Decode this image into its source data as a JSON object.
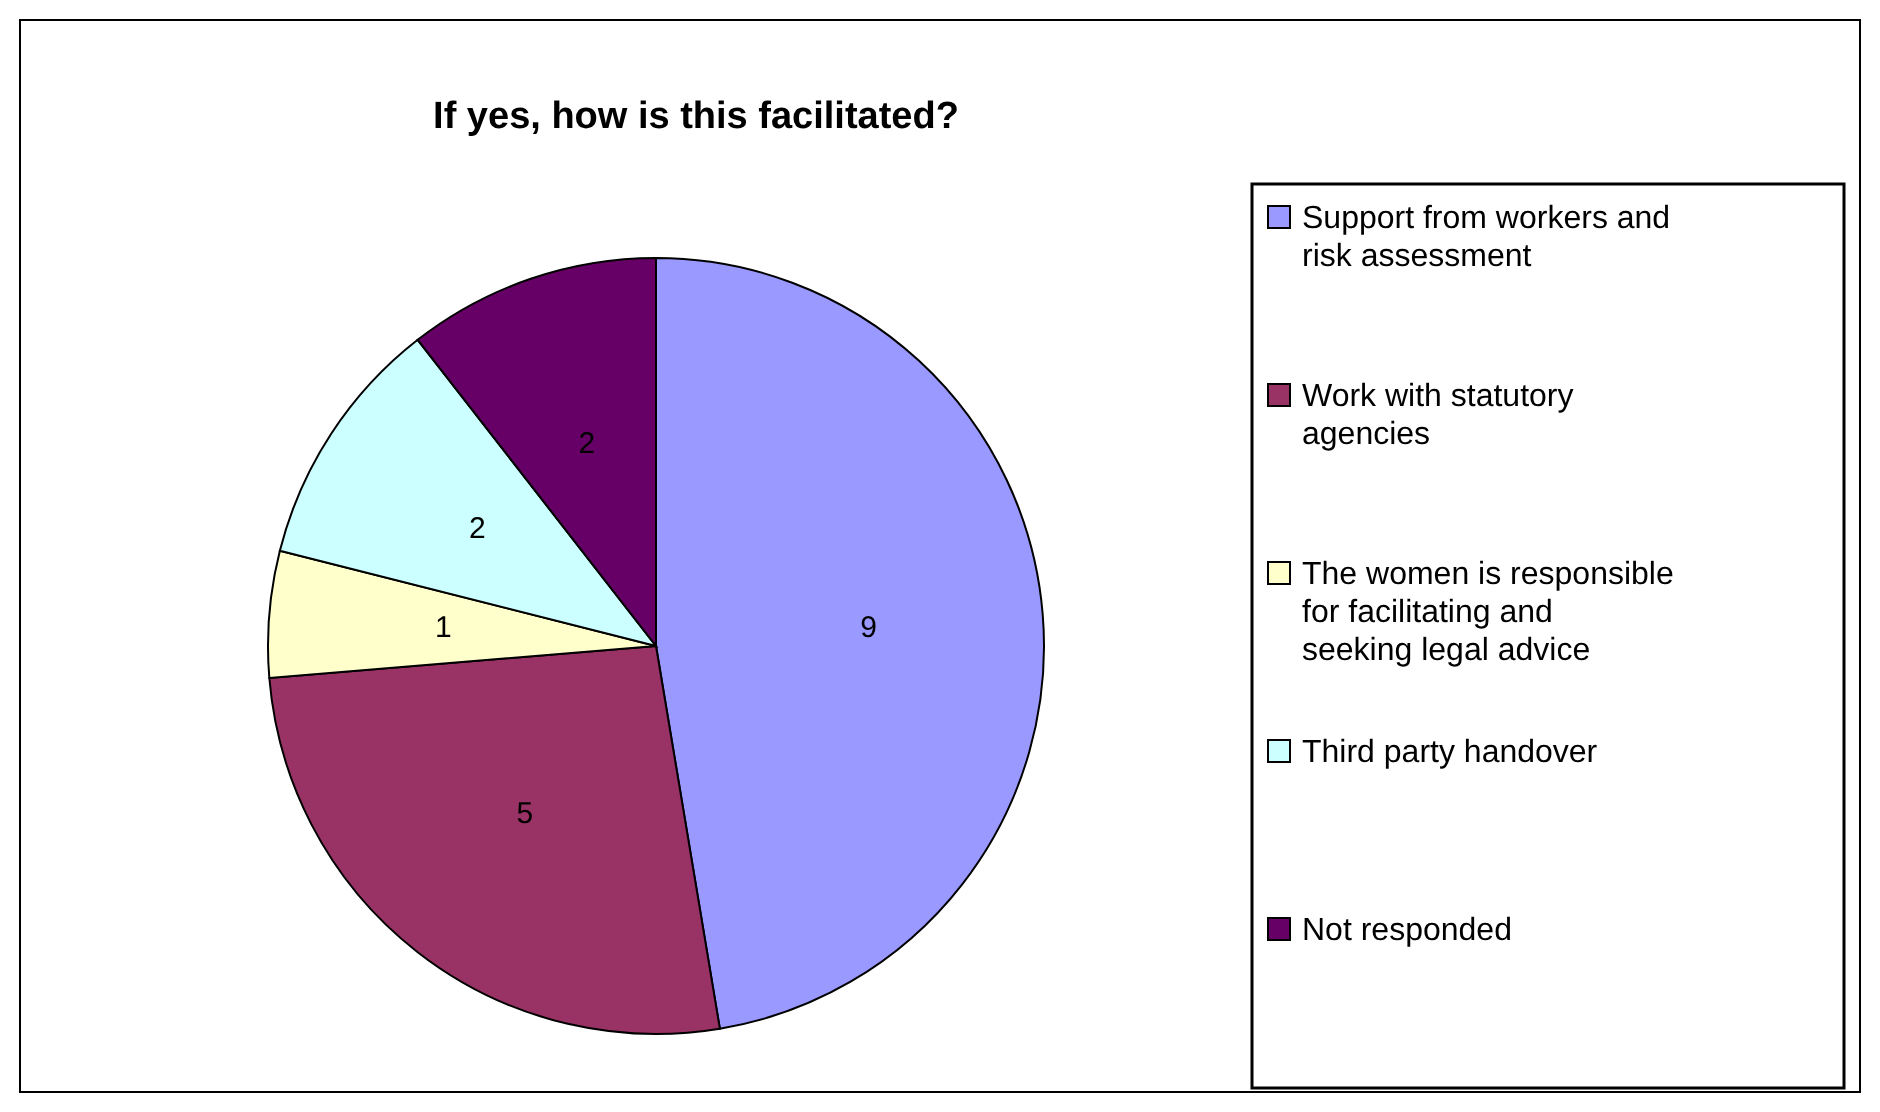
{
  "chart_data": {
    "type": "pie",
    "title": "If yes, how is this facilitated?",
    "categories": [
      "Support from workers and risk assessment",
      "Work with statutory agencies",
      "The women is responsible for facilitating and seeking legal advice",
      "Third party handover",
      "Not responded"
    ],
    "values": [
      9,
      5,
      1,
      2,
      2
    ],
    "colors": [
      "#9999ff",
      "#993366",
      "#ffffcc",
      "#ccffff",
      "#660066"
    ],
    "data_labels": true,
    "legend": "right"
  }
}
